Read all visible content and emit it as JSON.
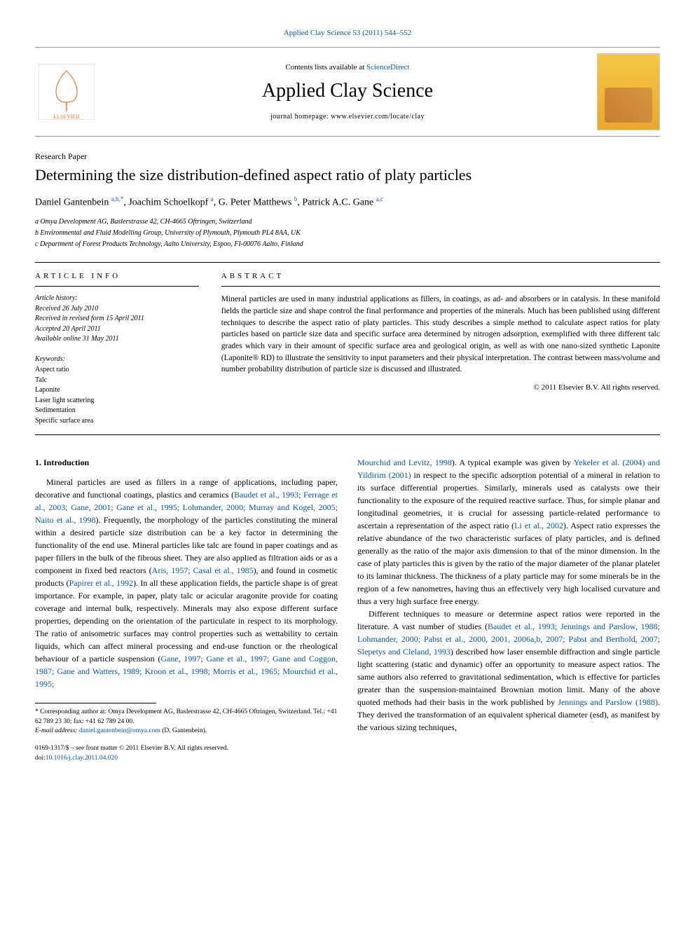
{
  "top_citation_link": "Applied Clay Science 53 (2011) 544–552",
  "masthead": {
    "contents_prefix": "Contents lists available at ",
    "contents_link": "ScienceDirect",
    "journal_title": "Applied Clay Science",
    "homepage_prefix": "journal homepage: ",
    "homepage_url": "www.elsevier.com/locate/clay",
    "publisher_logo_alt": "Elsevier",
    "cover_alt": "Applied Clay Science cover"
  },
  "paper": {
    "type": "Research Paper",
    "title": "Determining the size distribution-defined aspect ratio of platy particles",
    "authors_html": "Daniel Gantenbein <span class='sup'>a,b,</span><span class='sup'>*</span>, Joachim Schoelkopf <span class='sup'>a</span>, G. Peter Matthews <span class='sup'>b</span>, Patrick A.C. Gane <span class='sup'>a,c</span>",
    "affiliations": [
      "a Omya Development AG, Baslerstrasse 42, CH-4665 Oftringen, Switzerland",
      "b Environmental and Fluid Modelling Group, University of Plymouth, Plymouth PL4 8AA, UK",
      "c Department of Forest Products Technology, Aalto University, Espoo, FI-00076 Aalto, Finland"
    ]
  },
  "article_info": {
    "section_label": "ARTICLE INFO",
    "history_label": "Article history:",
    "history": [
      "Received 26 July 2010",
      "Received in revised form 15 April 2011",
      "Accepted 20 April 2011",
      "Available online 31 May 2011"
    ],
    "keywords_label": "Keywords:",
    "keywords": [
      "Aspect ratio",
      "Talc",
      "Laponite",
      "Laser light scattering",
      "Sedimentation",
      "Specific surface area"
    ]
  },
  "abstract": {
    "section_label": "ABSTRACT",
    "text": "Mineral particles are used in many industrial applications as fillers, in coatings, as ad- and absorbers or in catalysis. In these manifold fields the particle size and shape control the final performance and properties of the minerals. Much has been published using different techniques to describe the aspect ratio of platy particles. This study describes a simple method to calculate aspect ratios for platy particles based on particle size data and specific surface area determined by nitrogen adsorption, exemplified with three different talc grades which vary in their amount of specific surface area and geological origin, as well as with one nano-sized synthetic Laponite (Laponite® RD) to illustrate the sensitivity to input parameters and their physical interpretation. The contrast between mass/volume and number probability distribution of particle size is discussed and illustrated.",
    "copyright": "© 2011 Elsevier B.V. All rights reserved."
  },
  "body": {
    "intro_heading": "1. Introduction",
    "left_para": "Mineral particles are used as fillers in a range of applications, including paper, decorative and functional coatings, plastics and ceramics (<a href='#'>Baudet et al., 1993; Ferrage et al., 2003; Gane, 2001; Gane et al., 1995; Lohmander, 2000; Murray and Kogel, 2005; Naito et al., 1998</a>). Frequently, the morphology of the particles constituting the mineral within a desired particle size distribution can be a key factor in determining the functionality of the end use. Mineral particles like talc are found in paper coatings and as paper fillers in the bulk of the fibrous sheet. They are also applied as filtration aids or as a component in fixed bed reactors (<a href='#'>Aris, 1957; Casal et al., 1985</a>), and found in cosmetic products (<a href='#'>Papirer et al., 1992</a>). In all these application fields, the particle shape is of great importance. For example, in paper, platy talc or acicular aragonite provide for coating coverage and internal bulk, respectively. Minerals may also expose different surface properties, depending on the orientation of the particulate in respect to its morphology. The ratio of anisometric surfaces may control properties such as wettability to certain liquids, which can affect mineral processing and end-use function or the rheological behaviour of a particle suspension (<a href='#'>Gane, 1997; Gane et al., 1997; Gane and Coggon, 1987; Gane and Watters, 1989; Kroon et al., 1998; Morris et al., 1965; Mourchid et al., 1995;</a>",
    "right_para1": "<a href='#'>Mourchid and Levitz, 1998</a>). A typical example was given by <a href='#'>Yekeler et al. (2004) and Yildirim (2001)</a> in respect to the specific adsorption potential of a mineral in relation to its surface differential properties. Similarly, minerals used as catalysts owe their functionality to the exposure of the required reactive surface. Thus, for simple planar and longitudinal geometries, it is crucial for assessing particle-related performance to ascertain a representation of the aspect ratio (<a href='#'>Li et al., 2002</a>). Aspect ratio expresses the relative abundance of the two characteristic surfaces of platy particles, and is defined generally as the ratio of the major axis dimension to that of the minor dimension. In the case of platy particles this is given by the ratio of the major diameter of the planar platelet to its laminar thickness. The thickness of a platy particle may for some minerals be in the region of a few nanometres, having thus an effectively very high localised curvature and thus a very high surface free energy.",
    "right_para2": "Different techniques to measure or determine aspect ratios were reported in the literature. A vast number of studies (<a href='#'>Baudet et al., 1993; Jennings and Parslow, 1988; Lohmander, 2000; Pabst et al., 2000, 2001, 2006a,b, 2007; Pabst and Berthold, 2007; Slepetys and Cleland, 1993</a>) described how laser ensemble diffraction and single particle light scattering (static and dynamic) offer an opportunity to measure aspect ratios. The same authors also referred to gravitational sedimentation, which is effective for particles greater than the suspension-maintained Brownian motion limit. Many of the above quoted methods had their basis in the work published by <a href='#'>Jennings and Parslow (1988)</a>. They derived the transformation of an equivalent spherical diameter (esd), as manifest by the various sizing techniques,"
  },
  "footnotes": {
    "corr": "* Corresponding author at: Omya Development AG, Baslerstrasse 42, CH-4665 Oftringen, Switzerland. Tel.: +41 62 789 23 30; fax: +41 62 789 24 00.",
    "email_label": "E-mail address: ",
    "email": "daniel.gantenbein@omya.com",
    "email_suffix": " (D. Gantenbein).",
    "front_matter": "0169-1317/$ – see front matter © 2011 Elsevier B.V. All rights reserved.",
    "doi_label": "doi:",
    "doi": "10.1016/j.clay.2011.04.020"
  },
  "colors": {
    "link": "#0056b3",
    "text": "#000000",
    "rule": "#000000",
    "cover_top": "#f5c842",
    "cover_bottom": "#e8a830"
  }
}
